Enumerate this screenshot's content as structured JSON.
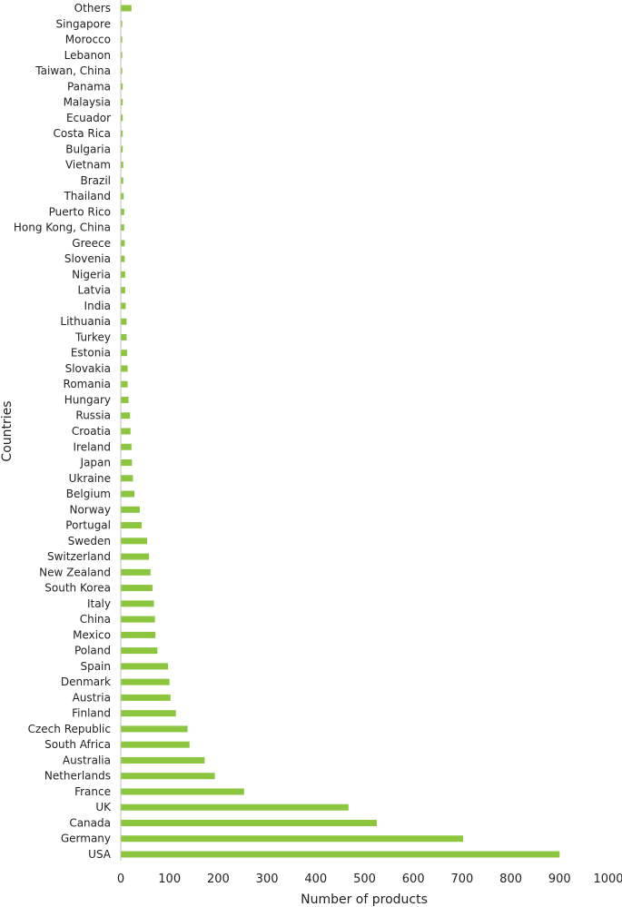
{
  "chart_data": {
    "type": "bar",
    "orientation": "horizontal",
    "xlabel": "Number of products",
    "ylabel": "Countries",
    "xlim": [
      0,
      1000
    ],
    "xticks": [
      0,
      100,
      200,
      300,
      400,
      500,
      600,
      700,
      800,
      900,
      1000
    ],
    "grid": false,
    "bar_color": "#8cc63f",
    "categories": [
      "USA",
      "Germany",
      "Canada",
      "UK",
      "France",
      "Netherlands",
      "Australia",
      "South Africa",
      "Czech Republic",
      "Finland",
      "Austria",
      "Denmark",
      "Spain",
      "Poland",
      "Mexico",
      "China",
      "Italy",
      "South Korea",
      "New Zealand",
      "Switzerland",
      "Sweden",
      "Portugal",
      "Norway",
      "Belgium",
      "Ukraine",
      "Japan",
      "Ireland",
      "Croatia",
      "Russia",
      "Hungary",
      "Romania",
      "Slovakia",
      "Estonia",
      "Turkey",
      "Lithuania",
      "India",
      "Latvia",
      "Nigeria",
      "Slovenia",
      "Greece",
      "Hong Kong, China",
      "Puerto Rico",
      "Thailand",
      "Brazil",
      "Vietnam",
      "Bulgaria",
      "Costa Rica",
      "Ecuador",
      "Malaysia",
      "Panama",
      "Taiwan, China",
      "Lebanon",
      "Morocco",
      "Singapore",
      "Others"
    ],
    "values": [
      900,
      702,
      525,
      467,
      253,
      193,
      172,
      141,
      137,
      113,
      102,
      100,
      97,
      75,
      71,
      70,
      68,
      65,
      61,
      58,
      54,
      43,
      39,
      28,
      25,
      23,
      22,
      20,
      19,
      16,
      14,
      14,
      13,
      12,
      12,
      10,
      9,
      9,
      8,
      8,
      7,
      7,
      6,
      5,
      5,
      4,
      4,
      4,
      4,
      4,
      3,
      3,
      3,
      3,
      22
    ]
  }
}
